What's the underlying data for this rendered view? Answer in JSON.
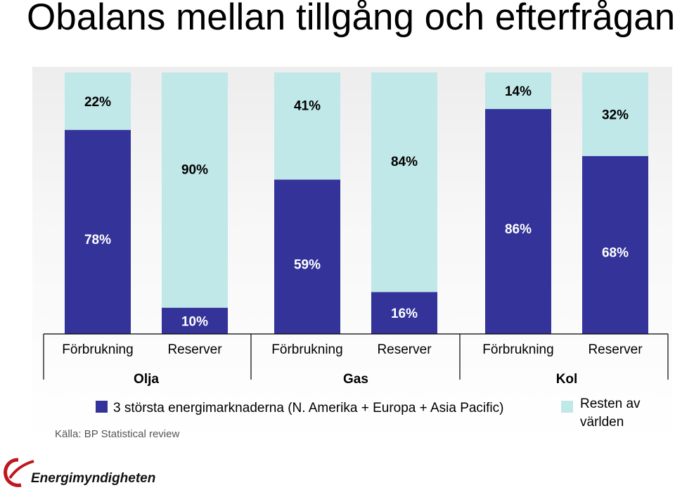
{
  "title": "Obalans mellan tillgång och efterfrågan",
  "chart_data": {
    "type": "bar",
    "stacked": true,
    "percent_stacked": true,
    "groups": [
      "Olja",
      "Gas",
      "Kol"
    ],
    "categories": [
      "Förbrukning",
      "Reserver",
      "Förbrukning",
      "Reserver",
      "Förbrukning",
      "Reserver"
    ],
    "series": [
      {
        "name": "3 största energimarknaderna (N. Amerika + Europa + Asia Pacific)",
        "color": "#33339a",
        "values": [
          78,
          10,
          59,
          16,
          86,
          68
        ],
        "labels": [
          "78%",
          "10%",
          "59%",
          "16%",
          "86%",
          "68%"
        ]
      },
      {
        "name": "Resten av världen",
        "color": "#c1e8e9",
        "values": [
          22,
          90,
          41,
          84,
          14,
          32
        ],
        "labels": [
          "22%",
          "90%",
          "41%",
          "84%",
          "14%",
          "32%"
        ]
      }
    ],
    "ylim": [
      0,
      100
    ],
    "legend_position": "bottom",
    "source": "Källa: BP Statistical review"
  },
  "legend": {
    "item1": "3 största energimarknaderna (N. Amerika + Europa + Asia Pacific)",
    "item2_line1": "Resten av",
    "item2_line2": "världen"
  },
  "logo": {
    "name": "Energimyndigheten",
    "icon": "energimyndigheten-logo-icon"
  }
}
